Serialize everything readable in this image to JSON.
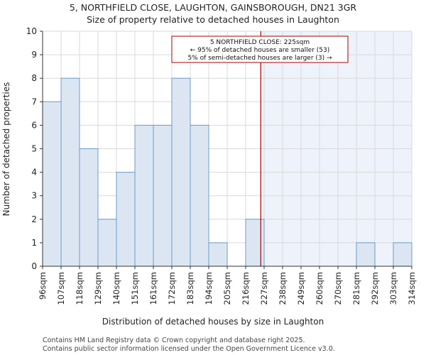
{
  "chart_data": {
    "type": "bar",
    "title": "5, NORTHFIELD CLOSE, LAUGHTON, GAINSBOROUGH, DN21 3GR",
    "subtitle": "Size of property relative to detached houses in Laughton",
    "xlabel": "Distribution of detached houses by size in Laughton",
    "ylabel": "Number of detached properties",
    "ylim": [
      0,
      10
    ],
    "yticks": [
      0,
      1,
      2,
      3,
      4,
      5,
      6,
      7,
      8,
      9,
      10
    ],
    "bin_edges": [
      96,
      107,
      118,
      129,
      140,
      151,
      161,
      172,
      183,
      194,
      205,
      216,
      227,
      238,
      249,
      260,
      270,
      281,
      292,
      303,
      314
    ],
    "xtick_labels": [
      "96sqm",
      "107sqm",
      "118sqm",
      "129sqm",
      "140sqm",
      "151sqm",
      "161sqm",
      "172sqm",
      "183sqm",
      "194sqm",
      "205sqm",
      "216sqm",
      "227sqm",
      "238sqm",
      "249sqm",
      "260sqm",
      "270sqm",
      "281sqm",
      "292sqm",
      "303sqm",
      "314sqm"
    ],
    "values": [
      7,
      8,
      5,
      2,
      4,
      6,
      6,
      8,
      6,
      1,
      0,
      2,
      0,
      0,
      0,
      0,
      0,
      1,
      0,
      1
    ],
    "subject_value": 225,
    "annotation": {
      "lines": [
        "5 NORTHFIELD CLOSE: 225sqm",
        "← 95% of detached houses are smaller (53)",
        "5% of semi-detached houses are larger (3) →"
      ]
    },
    "grid": true,
    "colors": {
      "bar_fill": "#dce6f3",
      "bar_stroke": "#6b9cc8",
      "marker_line": "#aa0000",
      "shade": "#eef2fa",
      "grid": "#d9d9d9",
      "axis": "#333333"
    }
  },
  "footer": {
    "line1": "Contains HM Land Registry data © Crown copyright and database right 2025.",
    "line2": "Contains public sector information licensed under the Open Government Licence v3.0."
  }
}
